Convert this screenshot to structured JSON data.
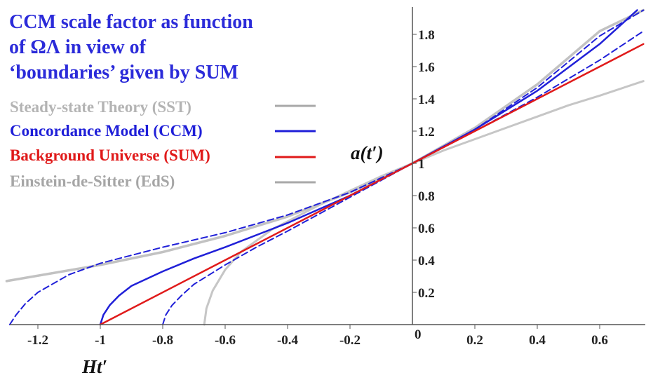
{
  "chart_data": {
    "type": "line",
    "title_lines": [
      "CCM scale factor as function",
      "of ΩΛ in view of",
      "‘boundaries’ given by SUM"
    ],
    "title_color": "#2b2bd9",
    "xlabel": "Ht′",
    "ylabel": "a(t′)",
    "xlim": [
      -1.3,
      0.74
    ],
    "ylim": [
      0,
      1.95
    ],
    "x_ticks": [
      "-1.2",
      "-1",
      "-0.8",
      "-0.6",
      "-0.4",
      "-0.2",
      "0.2",
      "0.4",
      "0.6"
    ],
    "x_tick_values": [
      -1.2,
      -1.0,
      -0.8,
      -0.6,
      -0.4,
      -0.2,
      0.2,
      0.4,
      0.6
    ],
    "origin_label": "0",
    "y_ticks": [
      "0.2",
      "0.4",
      "0.6",
      "0.8",
      "1",
      "1.2",
      "1.4",
      "1.6",
      "1.8"
    ],
    "y_tick_values": [
      0.2,
      0.4,
      0.6,
      0.8,
      1.0,
      1.2,
      1.4,
      1.6,
      1.8
    ],
    "legend": [
      {
        "label": "Steady-state Theory (SST)",
        "color": "#b4b4b4",
        "line_color": "#a8a8a8"
      },
      {
        "label": "Concordance Model (CCM)",
        "color": "#1f1fd8",
        "line_color": "#1f1fd8"
      },
      {
        "label": "Background Universe (SUM)",
        "color": "#e01a1a",
        "line_color": "#e01a1a"
      },
      {
        "label": "Einstein-de-Sitter (EdS)",
        "color": "#a6a6a6",
        "line_color": "#a8a8a8"
      }
    ],
    "series": [
      {
        "name": "Steady-state Theory (SST)",
        "color": "#c2c2c2",
        "dash": "solid",
        "width": 3.5,
        "x": [
          -1.3,
          -1.0,
          -0.8,
          -0.6,
          -0.4,
          -0.2,
          0.0,
          0.2,
          0.4,
          0.6,
          0.74
        ],
        "y": [
          0.27,
          0.37,
          0.45,
          0.55,
          0.67,
          0.82,
          1.0,
          1.22,
          1.49,
          1.82,
          1.95
        ]
      },
      {
        "name": "Einstein-de-Sitter (EdS)",
        "color": "#c6c6c6",
        "dash": "solid",
        "width": 3,
        "x": [
          -0.667,
          -0.66,
          -0.64,
          -0.6,
          -0.55,
          -0.5,
          -0.45,
          -0.4,
          -0.3,
          -0.2,
          -0.1,
          0.0,
          0.1,
          0.2,
          0.3,
          0.4,
          0.5,
          0.6,
          0.74
        ],
        "y": [
          0.0,
          0.1,
          0.21,
          0.34,
          0.45,
          0.52,
          0.59,
          0.64,
          0.74,
          0.83,
          0.92,
          1.0,
          1.08,
          1.15,
          1.22,
          1.29,
          1.36,
          1.42,
          1.51
        ]
      },
      {
        "name": "Concordance Model (CCM) high ΩΛ",
        "color": "#2020d8",
        "dash": "dashed",
        "width": 2,
        "x": [
          -1.29,
          -1.27,
          -1.24,
          -1.2,
          -1.1,
          -1.0,
          -0.8,
          -0.6,
          -0.4,
          -0.2,
          0.0,
          0.2,
          0.4,
          0.6,
          0.74
        ],
        "y": [
          0.0,
          0.06,
          0.13,
          0.2,
          0.31,
          0.38,
          0.48,
          0.57,
          0.68,
          0.82,
          1.0,
          1.21,
          1.47,
          1.79,
          1.95
        ]
      },
      {
        "name": "Concordance Model (CCM)",
        "color": "#2020d8",
        "dash": "solid",
        "width": 2.5,
        "x": [
          -1.0,
          -0.99,
          -0.97,
          -0.94,
          -0.9,
          -0.8,
          -0.7,
          -0.6,
          -0.4,
          -0.2,
          0.0,
          0.2,
          0.4,
          0.6,
          0.72
        ],
        "y": [
          0.0,
          0.06,
          0.12,
          0.18,
          0.24,
          0.33,
          0.41,
          0.48,
          0.63,
          0.8,
          1.0,
          1.21,
          1.45,
          1.74,
          1.95
        ]
      },
      {
        "name": "Concordance Model (CCM) low ΩΛ",
        "color": "#2020d8",
        "dash": "dashed",
        "width": 2,
        "x": [
          -0.8,
          -0.79,
          -0.77,
          -0.74,
          -0.7,
          -0.6,
          -0.5,
          -0.4,
          -0.2,
          0.0,
          0.2,
          0.4,
          0.6,
          0.74
        ],
        "y": [
          0.0,
          0.06,
          0.12,
          0.18,
          0.25,
          0.37,
          0.48,
          0.58,
          0.79,
          1.0,
          1.2,
          1.41,
          1.64,
          1.82
        ]
      },
      {
        "name": "Background Universe (SUM)",
        "color": "#e01a1a",
        "dash": "solid",
        "width": 2.5,
        "x": [
          -1.0,
          -0.5,
          0.0,
          0.5,
          0.74
        ],
        "y": [
          0.0,
          0.5,
          1.0,
          1.5,
          1.74
        ]
      }
    ]
  }
}
